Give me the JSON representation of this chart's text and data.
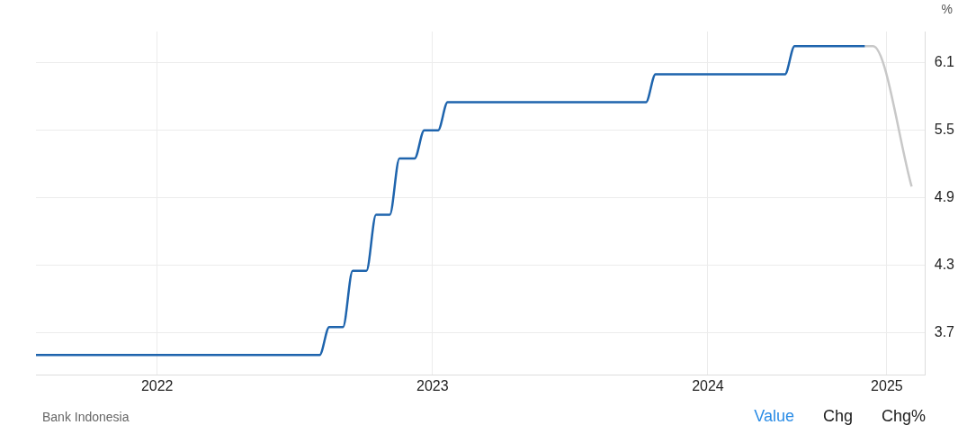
{
  "chart_data": {
    "type": "line",
    "ylabel": "%",
    "xlim": [
      2021.56,
      2024.79
    ],
    "xticks": [
      2022,
      2023,
      2024,
      {
        "value": 2024.65,
        "label": "2025"
      }
    ],
    "ylim": [
      3.32,
      6.38
    ],
    "yticks": [
      3.7,
      4.3,
      4.9,
      5.5,
      6.1
    ],
    "grid": true,
    "legend": false,
    "marker": "none",
    "line_style": "solid",
    "series": [
      {
        "color": "#1e64ad",
        "x": [
          2021.56,
          2022.59,
          2022.625,
          2022.675,
          2022.71,
          2022.76,
          2022.795,
          2022.845,
          2022.88,
          2022.935,
          2022.97,
          2023.02,
          2023.055,
          2023.775,
          2023.81,
          2024.28,
          2024.315,
          2024.57
        ],
        "values": [
          3.5,
          3.5,
          3.75,
          3.75,
          4.25,
          4.25,
          4.75,
          4.75,
          5.25,
          5.25,
          5.5,
          5.5,
          5.75,
          5.75,
          6.0,
          6.0,
          6.25,
          6.25
        ]
      },
      {
        "color": "#c8c8c8",
        "x": [
          2024.57,
          2024.6,
          2024.74
        ],
        "values": [
          6.25,
          6.25,
          5.0
        ]
      }
    ],
    "annotations": [
      "Bank Indonesia",
      "Value",
      "Chg",
      "Chg%"
    ]
  }
}
